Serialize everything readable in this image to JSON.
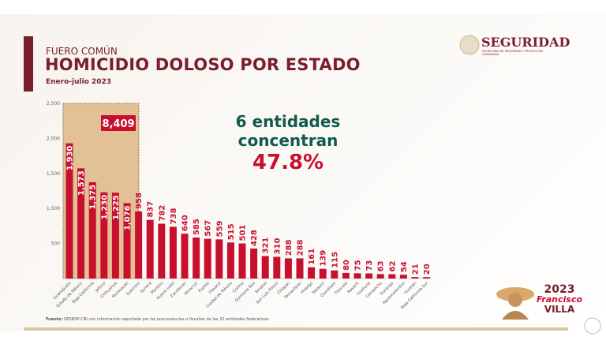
{
  "header": {
    "kicker": "FUERO COMÚN",
    "title": "HOMICIDIO DOLOSO POR ESTADO",
    "period": "Enero-julio 2023"
  },
  "logo": {
    "name": "SEGURIDAD",
    "subtitle": "SECRETARÍA DE SEGURIDAD Y PROTECCIÓN CIUDADANA"
  },
  "callout": {
    "line1": "6 entidades",
    "line2": "concentran",
    "value": "47.8%"
  },
  "source": {
    "label": "Fuente:",
    "text": " SESNSP-CNI con información reportada por las procuradurías o fiscalías de las 32 entidades federativas."
  },
  "footer_logo": {
    "year": "2023",
    "name1": "Francisco",
    "name2": "VILLA"
  },
  "colors": {
    "bar": "#c8102e",
    "highlight": "#e2c197",
    "title": "#7a1d2c",
    "callout_text": "#0f5a4c"
  },
  "chart_data": {
    "type": "bar",
    "ylim": [
      0,
      2500
    ],
    "yticks": [
      500,
      1000,
      1500,
      2000,
      2500
    ],
    "ytick_labels": [
      "500",
      "1,000",
      "1,500",
      "2,000",
      "2,500"
    ],
    "grid": false,
    "categories": [
      "Guanajuato",
      "Estado de México",
      "Baja California",
      "Jalisco",
      "Chihuahua",
      "Michoacán",
      "Guerrero",
      "Sonora",
      "Morelos",
      "Nuevo León",
      "Zacatecas",
      "Veracruz",
      "Puebla",
      "Oaxaca",
      "Ciudad de México",
      "Colima",
      "Quintana Roo",
      "Sinaloa",
      "San Luis Potosí",
      "Chiapas",
      "Tamaulipas",
      "Hidalgo",
      "Tabasco",
      "Querétaro",
      "Tlaxcala",
      "Nayarit",
      "Coahuila",
      "Campeche",
      "Durango",
      "Aguascalientes",
      "Yucatán",
      "Baja California Sur"
    ],
    "values": [
      1930,
      1573,
      1375,
      1230,
      1225,
      1076,
      958,
      837,
      782,
      738,
      640,
      585,
      567,
      559,
      515,
      501,
      428,
      321,
      310,
      288,
      288,
      161,
      139,
      115,
      80,
      75,
      73,
      63,
      62,
      54,
      21,
      20
    ],
    "value_labels": [
      "1,930",
      "1,573",
      "1,375",
      "1,230",
      "1,225",
      "1,076",
      "958",
      "837",
      "782",
      "738",
      "640",
      "585",
      "567",
      "559",
      "515",
      "501",
      "428",
      "321",
      "310",
      "288",
      "288",
      "161",
      "139",
      "115",
      "80",
      "75",
      "73",
      "63",
      "62",
      "54",
      "21",
      "20"
    ],
    "highlight": {
      "count": 6,
      "total_label": "8,409"
    }
  }
}
